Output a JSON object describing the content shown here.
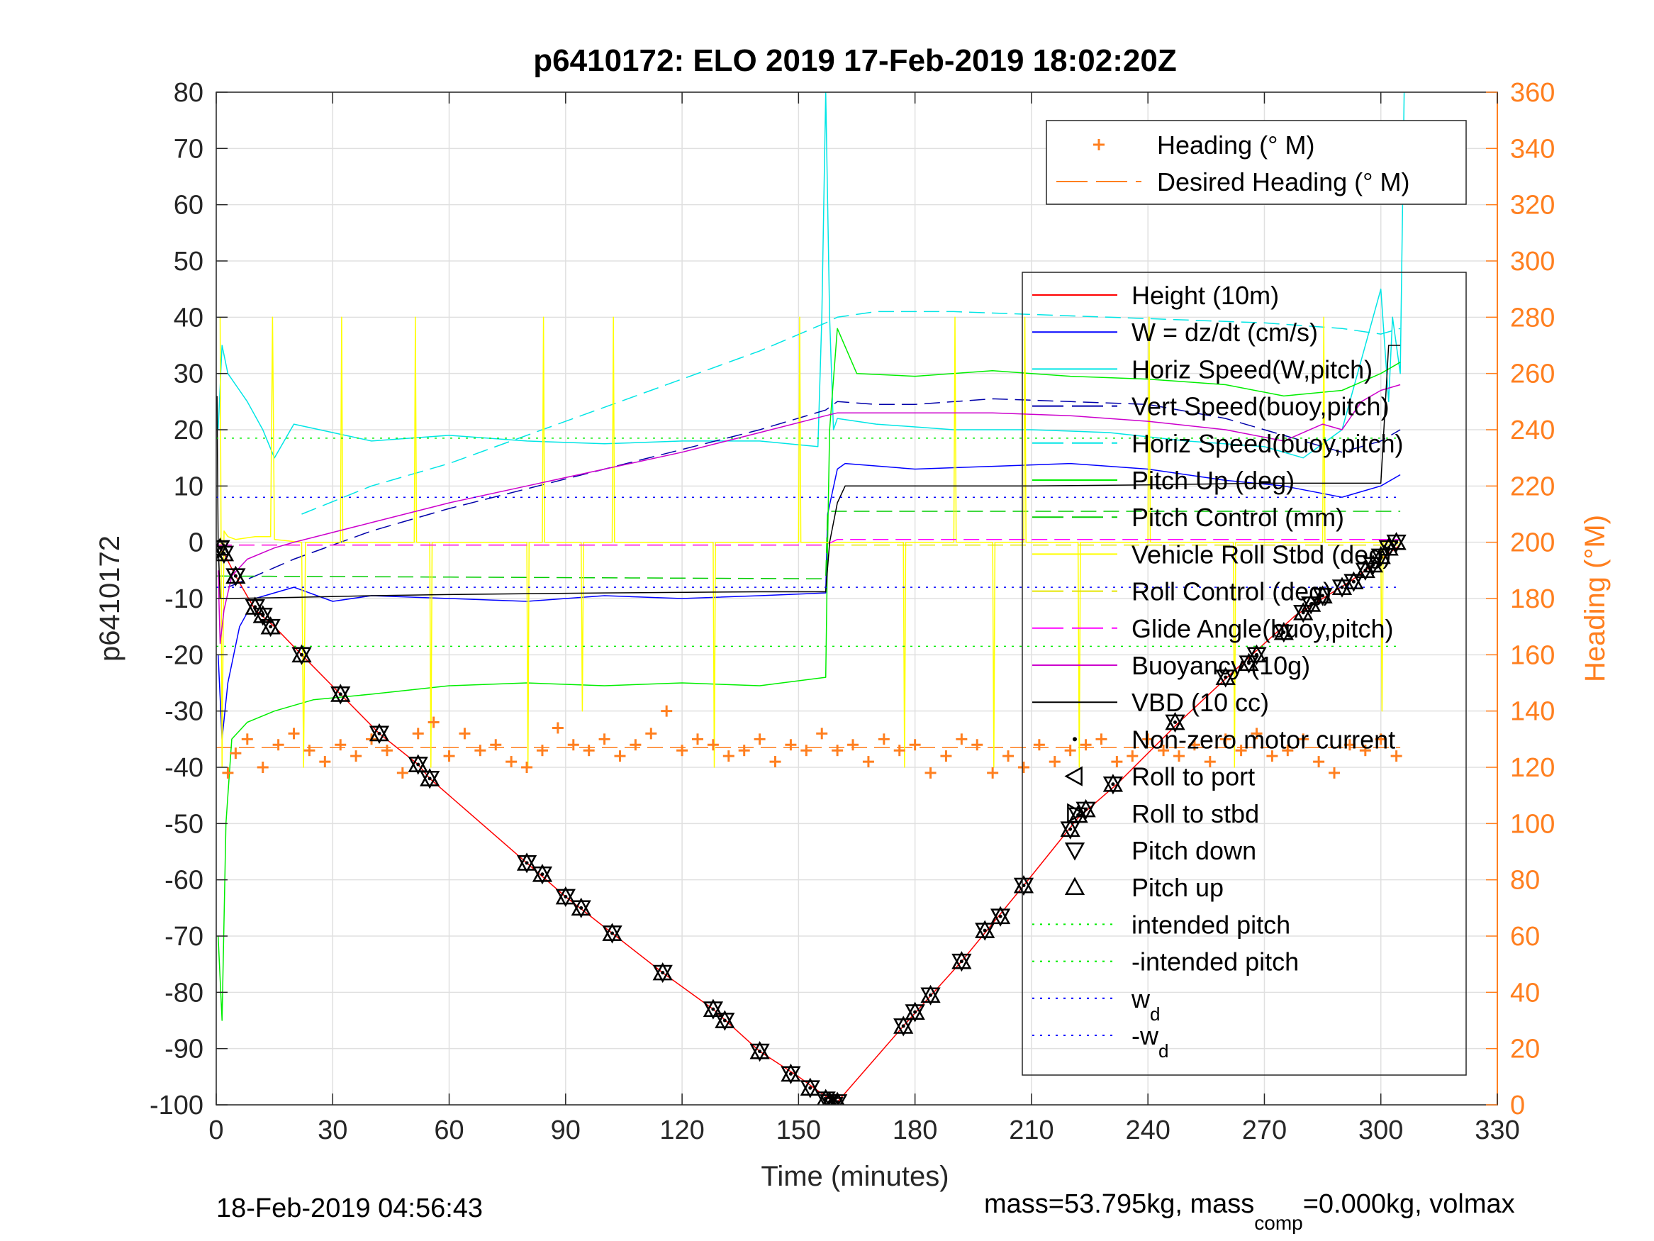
{
  "chart_data": {
    "type": "line",
    "title": "p6410172: ELO 2019 17-Feb-2019 18:02:20Z",
    "xlabel": "Time (minutes)",
    "ylabel": "p6410172",
    "y2label": "Heading (°M)",
    "xlim": [
      0,
      330
    ],
    "ylim": [
      -100,
      80
    ],
    "y2lim": [
      0,
      360
    ],
    "xticks": [
      0,
      30,
      60,
      90,
      120,
      150,
      180,
      210,
      240,
      270,
      300,
      330
    ],
    "yticks": [
      -100,
      -90,
      -80,
      -70,
      -60,
      -50,
      -40,
      -30,
      -20,
      -10,
      0,
      10,
      20,
      30,
      40,
      50,
      60,
      70,
      80
    ],
    "y2ticks": [
      0,
      20,
      40,
      60,
      80,
      100,
      120,
      140,
      160,
      180,
      200,
      220,
      240,
      260,
      280,
      300,
      320,
      340,
      360
    ],
    "grid": true,
    "colors": {
      "height": "#ff0000",
      "w": "#0000ff",
      "horiz": "#00e5e5",
      "pitch": "#00ee00",
      "roll": "#ffff00",
      "glide": "#ff00ff",
      "vbd": "#000000",
      "heading": "#ff7f1f",
      "axis2": "#ff7f1f"
    },
    "footer_left": "18-Feb-2019 04:56:43",
    "footer_right": "mass=53.795kg, mass",
    "footer_sub": "comp",
    "footer_tail": "=0.000kg, volmax",
    "legend_top": [
      {
        "label": "Heading (° M)",
        "style": "plus",
        "color": "#ff7f1f"
      },
      {
        "label": "Desired Heading (° M)",
        "style": "dash",
        "color": "#ff7f1f"
      }
    ],
    "legend_main": [
      {
        "label": "Height (10m)",
        "style": "solid",
        "color": "#ff0000"
      },
      {
        "label": "W = dz/dt (cm/s)",
        "style": "solid",
        "color": "#0000ff"
      },
      {
        "label": "Horiz Speed(W,pitch)",
        "style": "solid",
        "color": "#00e5e5"
      },
      {
        "label": "Vert Speed(buoy,pitch)",
        "style": "dash",
        "color": "#0000aa"
      },
      {
        "label": "Horiz Speed(buoy,pitch)",
        "style": "dash",
        "color": "#00e5e5"
      },
      {
        "label": "Pitch Up (deg)",
        "style": "solid",
        "color": "#00ee00"
      },
      {
        "label": "Pitch Control (mm)",
        "style": "dash",
        "color": "#00cc00"
      },
      {
        "label": "Vehicle Roll Stbd (deg)",
        "style": "solid",
        "color": "#ffff00"
      },
      {
        "label": "Roll Control (deg)",
        "style": "dash",
        "color": "#e5e500"
      },
      {
        "label": "Glide Angle(buoy,pitch)",
        "style": "dash",
        "color": "#ff00ff"
      },
      {
        "label": "Buoyancy (10g)",
        "style": "solid",
        "color": "#cc00cc"
      },
      {
        "label": "VBD (10 cc)",
        "style": "solid",
        "color": "#000000"
      },
      {
        "label": "Non-zero motor current",
        "style": "dot",
        "color": "#000000"
      },
      {
        "label": "Roll to port",
        "style": "tri-left",
        "color": "#000000"
      },
      {
        "label": "Roll to stbd",
        "style": "tri-right",
        "color": "#000000"
      },
      {
        "label": "Pitch down",
        "style": "tri-down",
        "color": "#000000"
      },
      {
        "label": "Pitch up",
        "style": "tri-up",
        "color": "#000000"
      },
      {
        "label": "intended pitch",
        "style": "dotted",
        "color": "#00ee00"
      },
      {
        "label": "-intended pitch",
        "style": "dotted",
        "color": "#00ee00"
      },
      {
        "label": "w",
        "sub": "d",
        "style": "dotted",
        "color": "#0000ff"
      },
      {
        "label": "-w",
        "sub": "d",
        "style": "dotted",
        "color": "#0000ff"
      }
    ],
    "series": [
      {
        "key": "height",
        "name": "Height (10m)",
        "color": "#ff0000",
        "width": 1.5,
        "x": [
          0,
          2,
          5,
          10,
          15,
          22,
          32,
          42,
          52,
          55,
          80,
          90,
          102,
          115,
          128,
          140,
          150,
          155,
          158,
          160,
          177,
          192,
          208,
          222,
          232,
          248,
          262,
          278,
          292,
          300,
          305
        ],
        "y": [
          -0.5,
          -2,
          -6,
          -12,
          -15,
          -20,
          -27,
          -34,
          -39.5,
          -42,
          -57,
          -63,
          -69.5,
          -76.5,
          -83,
          -90.5,
          -95,
          -97.5,
          -99,
          -99.5,
          -86,
          -74.5,
          -61,
          -49,
          -43,
          -32,
          -23,
          -13,
          -7,
          -3,
          -0.5
        ]
      },
      {
        "key": "w",
        "name": "W = dz/dt (cm/s)",
        "color": "#0000ff",
        "width": 1.5,
        "x": [
          0.5,
          1.5,
          3,
          6,
          10,
          20,
          30,
          40,
          60,
          80,
          100,
          120,
          140,
          157,
          157.5,
          160,
          162,
          180,
          200,
          220,
          240,
          260,
          275,
          290,
          300,
          305
        ],
        "y": [
          -20,
          -35,
          -25,
          -15,
          -10,
          -8,
          -10.5,
          -9.5,
          -10,
          -10.5,
          -9.5,
          -10,
          -9.5,
          -9,
          5,
          13,
          14,
          13,
          13.5,
          14,
          13,
          11,
          10,
          8,
          10,
          12
        ]
      },
      {
        "key": "horizW",
        "name": "Horiz Speed(W,pitch)",
        "color": "#00e5e5",
        "width": 1.5,
        "x": [
          0.5,
          1.5,
          3,
          6,
          8,
          12,
          15,
          20,
          30,
          40,
          60,
          80,
          100,
          120,
          140,
          155,
          156,
          157,
          158,
          159,
          160,
          170,
          190,
          210,
          230,
          250,
          270,
          280,
          290,
          300,
          302,
          303,
          305,
          306
        ],
        "y": [
          20,
          35,
          30,
          27,
          25,
          20,
          15,
          21,
          19.5,
          18,
          19,
          18,
          17.5,
          18,
          18,
          17,
          40,
          80,
          40,
          20,
          22,
          21,
          20,
          20,
          19.5,
          18,
          17,
          15,
          20,
          45,
          25,
          40,
          30,
          80
        ]
      },
      {
        "key": "vertBuoy",
        "name": "Vert Speed(buoy,pitch)",
        "color": "#0000aa",
        "width": 1.5,
        "dash": "22 10",
        "x": [
          3,
          10,
          20,
          40,
          60,
          80,
          100,
          120,
          140,
          157,
          160,
          170,
          180,
          200,
          220,
          240,
          260,
          275,
          290,
          300,
          305
        ],
        "y": [
          -8,
          -6,
          -3,
          2,
          6,
          9.5,
          13,
          16.5,
          20,
          23.5,
          25,
          24.5,
          24.5,
          25.5,
          25,
          24.5,
          22,
          19,
          16,
          18,
          20
        ]
      },
      {
        "key": "horizBuoy",
        "name": "Horiz Speed(buoy,pitch)",
        "color": "#00e5e5",
        "width": 1.5,
        "dash": "22 10",
        "x": [
          22,
          40,
          60,
          80,
          100,
          120,
          140,
          157,
          160,
          170,
          190,
          210,
          230,
          250,
          270,
          290,
          300,
          305
        ],
        "y": [
          5,
          10,
          14,
          19,
          24,
          29,
          34,
          39,
          40,
          41,
          41,
          40.5,
          40,
          39.5,
          39,
          38,
          37,
          38
        ]
      },
      {
        "key": "pitchUp",
        "name": "Pitch Up (deg)",
        "color": "#00ee00",
        "width": 1.5,
        "x": [
          0.5,
          1.5,
          2.5,
          4,
          8,
          15,
          25,
          40,
          60,
          80,
          100,
          120,
          140,
          157,
          157.5,
          158,
          160,
          165,
          180,
          200,
          210,
          220,
          240,
          260,
          275,
          290,
          300,
          305
        ],
        "y": [
          -70,
          -85,
          -50,
          -35,
          -32,
          -30,
          -28,
          -27,
          -25.5,
          -25,
          -25.5,
          -25,
          -25.5,
          -24,
          0,
          20,
          38,
          30,
          29.5,
          30.5,
          30,
          29.5,
          29,
          28,
          26,
          27,
          30,
          32
        ]
      },
      {
        "key": "pitchCtl",
        "name": "Pitch Control (mm)",
        "color": "#00cc00",
        "width": 1.5,
        "dash": "22 10",
        "x": [
          0,
          157,
          157.5,
          305
        ],
        "y": [
          -6,
          -6.5,
          5.5,
          5.5
        ]
      },
      {
        "key": "roll",
        "name": "Vehicle Roll Stbd (deg)",
        "color": "#ffff00",
        "width": 1.5,
        "x": [
          1,
          1.5,
          2,
          3,
          5,
          10,
          14,
          14.5,
          15,
          22,
          22.5,
          23,
          32,
          32.3,
          32.6,
          51,
          51.3,
          51.6,
          55,
          55.3,
          55.6,
          80,
          80.3,
          80.6,
          84,
          84.3,
          84.6,
          94,
          94.3,
          94.6,
          102,
          102.3,
          102.6,
          128,
          128.3,
          128.6,
          150,
          150.3,
          150.6,
          157,
          160,
          177,
          177.3,
          177.6,
          190,
          190.3,
          190.6,
          200,
          200.3,
          200.6,
          208,
          208.3,
          208.6,
          222,
          222.3,
          222.6,
          240,
          240.3,
          240.6,
          262,
          262.3,
          262.6,
          285,
          285.3,
          285.6,
          300,
          300.3,
          300.6,
          305
        ],
        "y": [
          40,
          -40,
          2,
          1,
          0.5,
          1,
          1,
          40,
          0.5,
          0,
          -40,
          0,
          0,
          40,
          0,
          0,
          40,
          0,
          0,
          -40,
          0,
          0,
          -40,
          0,
          0,
          40,
          0,
          0,
          -30,
          0,
          0,
          40,
          0,
          0,
          -40,
          0,
          0,
          40,
          0,
          0,
          0,
          0,
          -40,
          0,
          0,
          40,
          0,
          0,
          -40,
          0,
          0,
          40,
          0,
          0,
          -40,
          0,
          0,
          40,
          0,
          0,
          -40,
          0,
          0,
          40,
          0,
          0,
          -30,
          0,
          0
        ]
      },
      {
        "key": "rollCtl",
        "name": "Roll Control (deg)",
        "color": "#e5e500",
        "width": 1.5,
        "dash": "22 10",
        "x": [
          0,
          305
        ],
        "y": [
          -0.5,
          -0.5
        ]
      },
      {
        "key": "glide",
        "name": "Glide Angle(buoy,pitch)",
        "color": "#ff00ff",
        "width": 1.5,
        "dash": "22 10",
        "x": [
          0,
          157,
          160,
          305
        ],
        "y": [
          -0.5,
          -0.5,
          0.5,
          0.5
        ]
      },
      {
        "key": "buoy",
        "name": "Buoyancy (10g)",
        "color": "#cc00cc",
        "width": 1.5,
        "x": [
          0.5,
          1,
          2,
          4,
          8,
          15,
          20,
          40,
          60,
          80,
          100,
          120,
          140,
          157,
          160,
          180,
          200,
          220,
          240,
          260,
          275,
          285,
          290,
          295,
          300,
          305
        ],
        "y": [
          -5,
          -18,
          -12,
          -6,
          -3,
          -1,
          0,
          3.5,
          7,
          10,
          13,
          16,
          19.5,
          22.5,
          23,
          23,
          23,
          22.5,
          21.5,
          20,
          18,
          21,
          20,
          25,
          27,
          28
        ]
      },
      {
        "key": "vbd",
        "name": "VBD (10 cc)",
        "color": "#000000",
        "width": 1.5,
        "x": [
          0.2,
          0.5,
          1,
          2,
          3,
          20,
          40,
          60,
          100,
          140,
          157,
          158,
          160,
          162,
          180,
          210,
          240,
          270,
          290,
          300,
          302,
          305
        ],
        "y": [
          26,
          0,
          -10,
          -10,
          -10,
          -9.8,
          -9.5,
          -9.3,
          -9,
          -8.8,
          -8.8,
          0,
          7,
          10,
          10,
          10,
          10.2,
          10.5,
          10.5,
          10.5,
          35,
          35
        ]
      },
      {
        "key": "intended",
        "name": "intended pitch",
        "color": "#00ee00",
        "width": 1.5,
        "dot": true,
        "x": [
          0,
          305
        ],
        "y": [
          18.5,
          18.5
        ]
      },
      {
        "key": "nintended",
        "name": "-intended pitch",
        "color": "#00ee00",
        "width": 1.5,
        "dot": true,
        "x": [
          0,
          305
        ],
        "y": [
          -18.5,
          -18.5
        ]
      },
      {
        "key": "wd",
        "name": "wd",
        "color": "#0000ff",
        "width": 1.5,
        "dot": true,
        "x": [
          0,
          305
        ],
        "y": [
          8,
          8
        ]
      },
      {
        "key": "nwd",
        "name": "-wd",
        "color": "#0000ff",
        "width": 1.5,
        "dot": true,
        "x": [
          0,
          305
        ],
        "y": [
          -8,
          -8
        ]
      }
    ],
    "heading": {
      "name": "Heading (° M)",
      "axis": "right",
      "color": "#ff7f1f",
      "x": [
        3,
        5,
        8,
        12,
        16,
        20,
        24,
        28,
        32,
        36,
        40,
        44,
        48,
        52,
        56,
        60,
        64,
        68,
        72,
        76,
        80,
        84,
        88,
        92,
        96,
        100,
        104,
        108,
        112,
        116,
        120,
        124,
        128,
        132,
        136,
        140,
        144,
        148,
        152,
        156,
        160,
        164,
        168,
        172,
        176,
        180,
        184,
        188,
        192,
        196,
        200,
        204,
        208,
        212,
        216,
        220,
        224,
        228,
        232,
        236,
        240,
        244,
        248,
        252,
        256,
        260,
        264,
        268,
        272,
        276,
        280,
        284,
        288,
        292,
        296,
        300,
        304
      ],
      "y": [
        118,
        125,
        130,
        120,
        128,
        132,
        126,
        122,
        128,
        124,
        130,
        126,
        118,
        132,
        136,
        124,
        132,
        126,
        128,
        122,
        120,
        126,
        134,
        128,
        126,
        130,
        124,
        128,
        132,
        140,
        126,
        130,
        128,
        124,
        126,
        130,
        122,
        128,
        126,
        132,
        126,
        128,
        122,
        130,
        126,
        128,
        118,
        124,
        130,
        128,
        118,
        124,
        120,
        128,
        122,
        126,
        128,
        130,
        122,
        124,
        130,
        126,
        124,
        128,
        122,
        130,
        126,
        132,
        124,
        126,
        130,
        122,
        118,
        128,
        126,
        130,
        124
      ],
      "desired": 127
    },
    "markers": {
      "x": [
        1,
        2,
        5,
        10,
        12,
        14,
        22,
        32,
        42,
        52,
        55,
        80,
        84,
        90,
        94,
        102,
        115,
        128,
        131,
        140,
        148,
        153,
        157,
        158,
        159,
        160,
        177,
        180,
        184,
        192,
        198,
        202,
        208,
        220,
        222,
        224,
        231,
        247,
        260,
        266,
        268,
        275,
        280,
        282,
        285,
        290,
        293,
        296,
        298,
        300,
        302,
        304
      ],
      "y": [
        -1,
        -2,
        -6,
        -11.5,
        -13,
        -15,
        -20,
        -27,
        -34,
        -39.5,
        -42,
        -57,
        -59,
        -63,
        -65,
        -69.5,
        -76.5,
        -83,
        -85,
        -90.5,
        -94.5,
        -97,
        -99,
        -99.5,
        -100,
        -99.5,
        -86,
        -83.5,
        -80.5,
        -74.5,
        -69,
        -66.5,
        -61,
        -51,
        -48.5,
        -47.5,
        -43,
        -32,
        -24,
        -21.5,
        -20,
        -16,
        -12.5,
        -11,
        -9.5,
        -8,
        -7,
        -5,
        -4,
        -2.5,
        -1,
        0
      ]
    }
  }
}
